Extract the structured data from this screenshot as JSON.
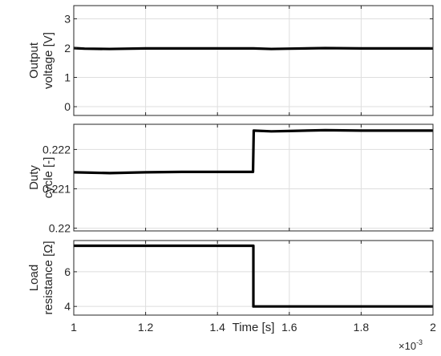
{
  "chart_data": [
    {
      "type": "line",
      "ylabel": [
        "Output",
        "voltage [V]"
      ],
      "ylim": [
        -0.3,
        3.45
      ],
      "yticks": [
        0,
        1,
        2,
        3
      ],
      "ytick_labels": [
        "0",
        "1",
        "2",
        "3"
      ],
      "xlim": [
        1.0,
        2.0
      ],
      "grid": true,
      "series": [
        {
          "color": "#000000",
          "x": [
            1.0,
            1.03,
            1.1,
            1.2,
            1.3,
            1.4,
            1.5,
            1.55,
            1.6,
            1.7,
            1.8,
            1.9,
            2.0
          ],
          "y": [
            2.0,
            1.98,
            1.97,
            1.99,
            1.99,
            1.99,
            1.99,
            1.97,
            1.98,
            2.0,
            1.99,
            1.99,
            1.99
          ]
        }
      ]
    },
    {
      "type": "line",
      "ylabel": [
        "Duty",
        "cycle [-]"
      ],
      "ylim": [
        0.21993,
        0.22264
      ],
      "yticks": [
        0.22,
        0.221,
        0.222
      ],
      "ytick_labels": [
        "0.22",
        "0.221",
        "0.222"
      ],
      "xlim": [
        1.0,
        2.0
      ],
      "grid": true,
      "series": [
        {
          "color": "#000000",
          "x": [
            1.0,
            1.05,
            1.1,
            1.2,
            1.3,
            1.4,
            1.499,
            1.501,
            1.55,
            1.6,
            1.7,
            1.8,
            1.9,
            2.0
          ],
          "y": [
            0.22142,
            0.22141,
            0.2214,
            0.22142,
            0.22143,
            0.22143,
            0.22143,
            0.22248,
            0.22246,
            0.22247,
            0.22249,
            0.22248,
            0.22248,
            0.22248
          ]
        }
      ]
    },
    {
      "type": "line",
      "ylabel": [
        "Load",
        "resistance [Ω]"
      ],
      "ylim": [
        3.5,
        7.8
      ],
      "yticks": [
        4,
        6
      ],
      "ytick_labels": [
        "4",
        "6"
      ],
      "xlim": [
        1.0,
        2.0
      ],
      "xticks": [
        1,
        1.2,
        1.4,
        1.6,
        1.8,
        2
      ],
      "xtick_labels": [
        "1",
        "1.2",
        "1.4",
        "1.6",
        "1.8",
        "2"
      ],
      "xlabel": "Time [s]",
      "x_exponent": "×10",
      "x_exponent_power": "-3",
      "grid": true,
      "series": [
        {
          "color": "#000000",
          "x": [
            1.0,
            1.5,
            1.5,
            2.0
          ],
          "y": [
            7.5,
            7.5,
            4.0,
            4.0
          ]
        }
      ]
    }
  ]
}
